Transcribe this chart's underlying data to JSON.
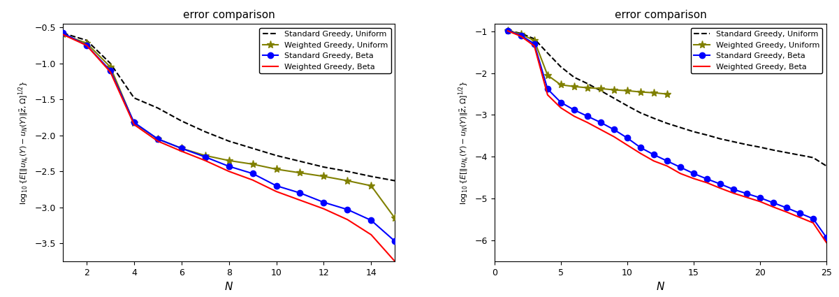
{
  "left": {
    "title": "error comparison",
    "xlim": [
      1,
      15
    ],
    "ylim": [
      -3.75,
      -0.45
    ],
    "xticks": [
      2,
      4,
      6,
      8,
      10,
      12,
      14
    ],
    "yticks": [
      -3.5,
      -3.0,
      -2.5,
      -2.0,
      -1.5,
      -1.0,
      -0.5
    ],
    "standard_uniform": {
      "x": [
        1,
        2,
        3,
        4,
        5,
        6,
        7,
        8,
        9,
        10,
        11,
        12,
        13,
        14,
        15
      ],
      "y": [
        -0.58,
        -0.68,
        -1.0,
        -1.48,
        -1.62,
        -1.8,
        -1.95,
        -2.08,
        -2.18,
        -2.28,
        -2.36,
        -2.44,
        -2.5,
        -2.57,
        -2.63
      ]
    },
    "weighted_uniform": {
      "x": [
        1,
        2,
        3,
        4,
        5,
        6,
        7,
        8,
        9,
        10,
        11,
        12,
        13,
        14,
        15
      ],
      "y": [
        -0.6,
        -0.72,
        -1.05,
        -1.83,
        -2.05,
        -2.18,
        -2.28,
        -2.35,
        -2.4,
        -2.47,
        -2.52,
        -2.57,
        -2.63,
        -2.7,
        -3.15
      ]
    },
    "standard_beta": {
      "x": [
        1,
        2,
        3,
        4,
        5,
        6,
        7,
        8,
        9,
        10,
        11,
        12,
        13,
        14,
        15
      ],
      "y": [
        -0.58,
        -0.75,
        -1.1,
        -1.82,
        -2.05,
        -2.18,
        -2.3,
        -2.43,
        -2.53,
        -2.7,
        -2.8,
        -2.93,
        -3.03,
        -3.18,
        -3.47
      ]
    },
    "weighted_beta": {
      "x": [
        1,
        2,
        3,
        4,
        5,
        6,
        7,
        8,
        9,
        10,
        11,
        12,
        13,
        14,
        15
      ],
      "y": [
        -0.6,
        -0.75,
        -1.12,
        -1.85,
        -2.08,
        -2.22,
        -2.35,
        -2.5,
        -2.62,
        -2.78,
        -2.9,
        -3.02,
        -3.17,
        -3.38,
        -3.75
      ]
    }
  },
  "right": {
    "title": "error comparison",
    "xlim": [
      0,
      25
    ],
    "ylim": [
      -6.5,
      -0.82
    ],
    "xticks": [
      0,
      5,
      10,
      15,
      20,
      25
    ],
    "yticks": [
      -6,
      -5,
      -4,
      -3,
      -2,
      -1
    ],
    "standard_uniform": {
      "x": [
        1,
        2,
        3,
        4,
        5,
        6,
        7,
        8,
        9,
        10,
        11,
        12,
        13,
        14,
        15,
        16,
        17,
        18,
        19,
        20,
        21,
        22,
        23,
        24,
        25
      ],
      "y": [
        -0.98,
        -1.05,
        -1.18,
        -1.52,
        -1.85,
        -2.1,
        -2.25,
        -2.42,
        -2.6,
        -2.78,
        -2.95,
        -3.08,
        -3.2,
        -3.3,
        -3.4,
        -3.48,
        -3.57,
        -3.64,
        -3.71,
        -3.77,
        -3.84,
        -3.9,
        -3.96,
        -4.02,
        -4.22
      ]
    },
    "weighted_uniform": {
      "x": [
        1,
        2,
        3,
        4,
        5,
        6,
        7,
        8,
        9,
        10,
        11,
        12,
        13
      ],
      "y": [
        -0.98,
        -1.07,
        -1.22,
        -2.05,
        -2.28,
        -2.32,
        -2.35,
        -2.37,
        -2.4,
        -2.42,
        -2.45,
        -2.47,
        -2.5
      ]
    },
    "standard_beta": {
      "x": [
        1,
        2,
        3,
        4,
        5,
        6,
        7,
        8,
        9,
        10,
        11,
        12,
        13,
        14,
        15,
        16,
        17,
        18,
        19,
        20,
        21,
        22,
        23,
        24,
        25
      ],
      "y": [
        -0.98,
        -1.1,
        -1.3,
        -2.38,
        -2.7,
        -2.88,
        -3.03,
        -3.18,
        -3.35,
        -3.55,
        -3.78,
        -3.95,
        -4.1,
        -4.25,
        -4.4,
        -4.53,
        -4.65,
        -4.78,
        -4.88,
        -4.98,
        -5.1,
        -5.22,
        -5.35,
        -5.48,
        -5.93
      ]
    },
    "weighted_beta": {
      "x": [
        1,
        2,
        3,
        4,
        5,
        6,
        7,
        8,
        9,
        10,
        11,
        12,
        13,
        14,
        15,
        16,
        17,
        18,
        19,
        20,
        21,
        22,
        23,
        24,
        25
      ],
      "y": [
        -0.99,
        -1.12,
        -1.35,
        -2.52,
        -2.83,
        -3.03,
        -3.18,
        -3.35,
        -3.52,
        -3.72,
        -3.92,
        -4.1,
        -4.22,
        -4.4,
        -4.52,
        -4.62,
        -4.75,
        -4.87,
        -4.97,
        -5.07,
        -5.2,
        -5.32,
        -5.45,
        -5.58,
        -6.05
      ]
    }
  },
  "colors": {
    "standard_uniform": "#000000",
    "weighted_uniform": "#808000",
    "standard_beta": "#0000ff",
    "weighted_beta": "#ff0000"
  },
  "legend_labels": {
    "standard_uniform": "Standard Greedy, Uniform",
    "weighted_uniform": "Weighted Greedy, Uniform",
    "standard_beta": "Standard Greedy, Beta",
    "weighted_beta": "Weighted Greedy, Beta"
  }
}
